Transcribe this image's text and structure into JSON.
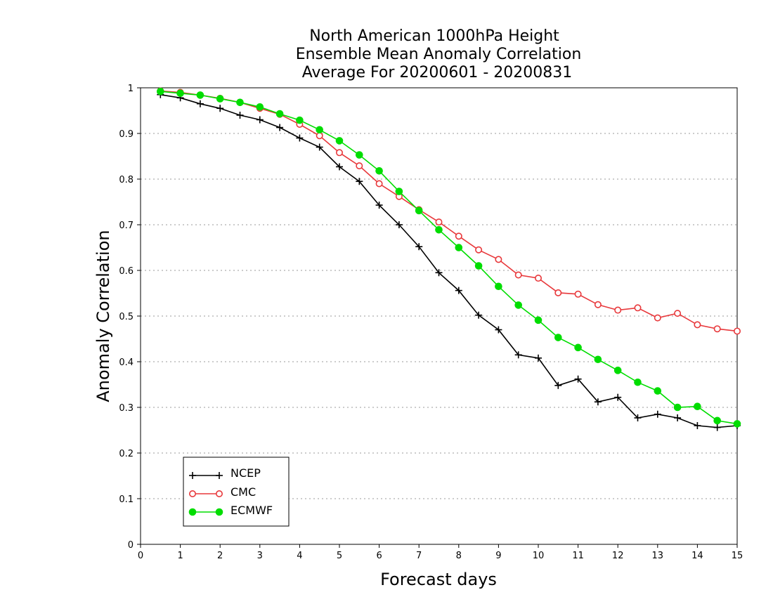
{
  "chart_data": {
    "type": "line",
    "title": [
      "North American 1000hPa Height",
      "Ensemble Mean Anomaly Correlation",
      "Average For 20200601 - 20200831"
    ],
    "xlabel": "Forecast days",
    "ylabel": "Anomaly Correlation",
    "xlim": [
      0,
      15
    ],
    "ylim": [
      0,
      1
    ],
    "xticks": [
      "0",
      "1",
      "2",
      "3",
      "4",
      "5",
      "6",
      "7",
      "8",
      "9",
      "10",
      "11",
      "12",
      "13",
      "14",
      "15"
    ],
    "yticks": [
      "0",
      "0.1",
      "0.2",
      "0.3",
      "0.4",
      "0.5",
      "0.6",
      "0.7",
      "0.8",
      "0.9",
      "1"
    ],
    "grid": "horizontal dotted",
    "legend_position": "bottom-left",
    "x": [
      0.5,
      1,
      1.5,
      2,
      2.5,
      3,
      3.5,
      4,
      4.5,
      5,
      5.5,
      6,
      6.5,
      7,
      7.5,
      8,
      8.5,
      9,
      9.5,
      10,
      10.5,
      11,
      11.5,
      12,
      12.5,
      13,
      13.5,
      14,
      14.5,
      15
    ],
    "series": [
      {
        "name": "NCEP",
        "color": "#000000",
        "marker": "plus",
        "values": [
          0.985,
          0.978,
          0.965,
          0.955,
          0.94,
          0.93,
          0.913,
          0.89,
          0.87,
          0.827,
          0.795,
          0.743,
          0.7,
          0.652,
          0.595,
          0.556,
          0.502,
          0.47,
          0.415,
          0.408,
          0.348,
          0.362,
          0.312,
          0.322,
          0.277,
          0.285,
          0.277,
          0.26,
          0.256,
          0.26
        ]
      },
      {
        "name": "CMC",
        "color": "#e8383b",
        "marker": "open-circle",
        "values": [
          0.993,
          0.99,
          0.984,
          0.977,
          0.968,
          0.955,
          0.942,
          0.92,
          0.895,
          0.858,
          0.829,
          0.79,
          0.762,
          0.733,
          0.706,
          0.675,
          0.645,
          0.624,
          0.59,
          0.583,
          0.551,
          0.548,
          0.525,
          0.513,
          0.518,
          0.496,
          0.506,
          0.481,
          0.472,
          0.467
        ]
      },
      {
        "name": "ECMWF",
        "color": "#00dd00",
        "marker": "filled-circle",
        "values": [
          0.992,
          0.988,
          0.984,
          0.976,
          0.968,
          0.958,
          0.943,
          0.929,
          0.908,
          0.884,
          0.853,
          0.818,
          0.773,
          0.731,
          0.689,
          0.65,
          0.61,
          0.565,
          0.524,
          0.491,
          0.453,
          0.431,
          0.405,
          0.381,
          0.355,
          0.336,
          0.3,
          0.302,
          0.271,
          0.264
        ]
      }
    ]
  }
}
